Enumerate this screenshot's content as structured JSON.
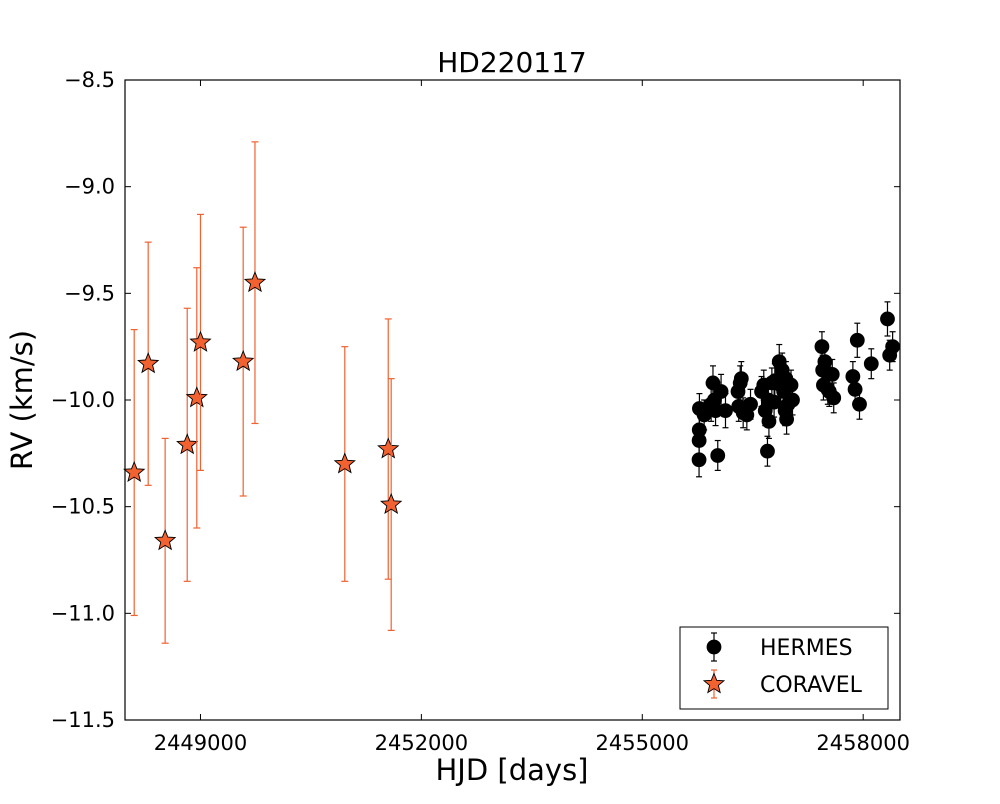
{
  "chart_data": {
    "type": "scatter",
    "title": "HD220117",
    "xlabel": "HJD [days]",
    "ylabel": "RV (km/s)",
    "xlim": [
      2447975,
      2458500
    ],
    "ylim": [
      -11.5,
      -8.5
    ],
    "x_ticks": [
      2449000,
      2452000,
      2455000,
      2458000
    ],
    "x_tick_labels": [
      "2449000",
      "2452000",
      "2455000",
      "2458000"
    ],
    "y_ticks": [
      -11.5,
      -11.0,
      -10.5,
      -10.0,
      -9.5,
      -9.0,
      -8.5
    ],
    "y_tick_labels": [
      "−11.5",
      "−11.0",
      "−10.5",
      "−10.0",
      "−9.5",
      "−9.0",
      "−8.5"
    ],
    "grid": false,
    "legend_position": "bottom-right",
    "series": [
      {
        "name": "HERMES",
        "marker": "circle",
        "color": "#000000",
        "points": [
          [
            2455771,
            -10.28,
            0.08
          ],
          [
            2455772,
            -10.19,
            0.07
          ],
          [
            2455774,
            -10.14,
            0.07
          ],
          [
            2455776,
            -10.04,
            0.07
          ],
          [
            2455840,
            -10.07,
            0.07
          ],
          [
            2455935,
            -10.02,
            0.08
          ],
          [
            2455960,
            -9.92,
            0.08
          ],
          [
            2455980,
            -10.0,
            0.07
          ],
          [
            2455995,
            -10.05,
            0.07
          ],
          [
            2456025,
            -10.26,
            0.07
          ],
          [
            2456070,
            -9.96,
            0.08
          ],
          [
            2456130,
            -10.05,
            0.08
          ],
          [
            2456300,
            -9.96,
            0.07
          ],
          [
            2456310,
            -10.03,
            0.07
          ],
          [
            2456330,
            -9.92,
            0.08
          ],
          [
            2456345,
            -9.9,
            0.08
          ],
          [
            2456370,
            -10.06,
            0.07
          ],
          [
            2456420,
            -10.07,
            0.07
          ],
          [
            2456470,
            -10.02,
            0.07
          ],
          [
            2456620,
            -9.96,
            0.07
          ],
          [
            2456650,
            -9.93,
            0.07
          ],
          [
            2456670,
            -10.05,
            0.07
          ],
          [
            2456700,
            -10.24,
            0.07
          ],
          [
            2456710,
            -10.0,
            0.08
          ],
          [
            2456720,
            -10.1,
            0.08
          ],
          [
            2456760,
            -9.92,
            0.07
          ],
          [
            2456790,
            -10.01,
            0.07
          ],
          [
            2456800,
            -9.91,
            0.08
          ],
          [
            2456860,
            -9.82,
            0.08
          ],
          [
            2456880,
            -9.93,
            0.08
          ],
          [
            2456900,
            -9.86,
            0.08
          ],
          [
            2456920,
            -9.96,
            0.08
          ],
          [
            2456940,
            -10.05,
            0.07
          ],
          [
            2456950,
            -9.9,
            0.08
          ],
          [
            2456960,
            -10.09,
            0.07
          ],
          [
            2456980,
            -10.02,
            0.07
          ],
          [
            2457020,
            -9.93,
            0.07
          ],
          [
            2457040,
            -10.0,
            0.07
          ],
          [
            2457440,
            -9.75,
            0.07
          ],
          [
            2457450,
            -9.86,
            0.07
          ],
          [
            2457460,
            -9.93,
            0.07
          ],
          [
            2457480,
            -9.82,
            0.07
          ],
          [
            2457500,
            -9.87,
            0.07
          ],
          [
            2457520,
            -9.95,
            0.07
          ],
          [
            2457540,
            -9.96,
            0.07
          ],
          [
            2457580,
            -9.88,
            0.07
          ],
          [
            2457600,
            -9.99,
            0.07
          ],
          [
            2457860,
            -9.89,
            0.07
          ],
          [
            2457890,
            -9.95,
            0.07
          ],
          [
            2457920,
            -9.72,
            0.08
          ],
          [
            2457950,
            -10.02,
            0.07
          ],
          [
            2458110,
            -9.83,
            0.07
          ],
          [
            2458330,
            -9.62,
            0.08
          ],
          [
            2458360,
            -9.79,
            0.07
          ],
          [
            2458400,
            -9.75,
            0.07
          ]
        ]
      },
      {
        "name": "CORAVEL",
        "marker": "star",
        "color": "#f26130",
        "points": [
          [
            2448100,
            -10.34,
            0.67
          ],
          [
            2448290,
            -9.83,
            0.57
          ],
          [
            2448520,
            -10.66,
            0.48
          ],
          [
            2448820,
            -10.21,
            0.64
          ],
          [
            2448950,
            -9.99,
            0.61
          ],
          [
            2449000,
            -9.73,
            0.6
          ],
          [
            2449580,
            -9.82,
            0.63
          ],
          [
            2449740,
            -9.45,
            0.66
          ],
          [
            2450960,
            -10.3,
            0.55
          ],
          [
            2451550,
            -10.23,
            0.61
          ],
          [
            2451590,
            -10.49,
            0.59
          ]
        ]
      }
    ]
  }
}
